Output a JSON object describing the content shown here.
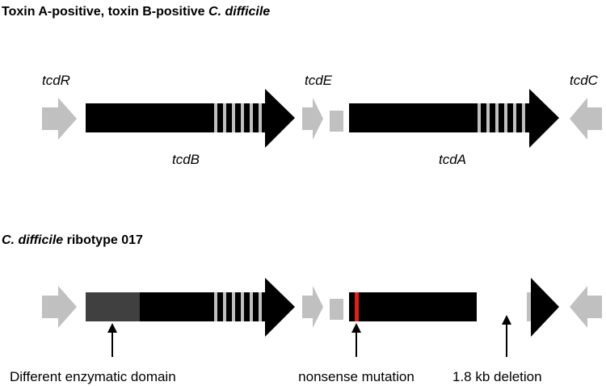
{
  "panels": [
    {
      "title": [
        "Toxin A-positive, toxin B-positive",
        "C. difficile"
      ],
      "genes": [
        "tcdR",
        "tcdE",
        "tcdC",
        "tcdB",
        "tcdA"
      ]
    },
    {
      "title": [
        "C. difficile",
        "ribotype 017"
      ],
      "annotations": [
        "Different enzymatic domain",
        "nonsense mutation",
        "1.8 kb deletion"
      ]
    }
  ]
}
